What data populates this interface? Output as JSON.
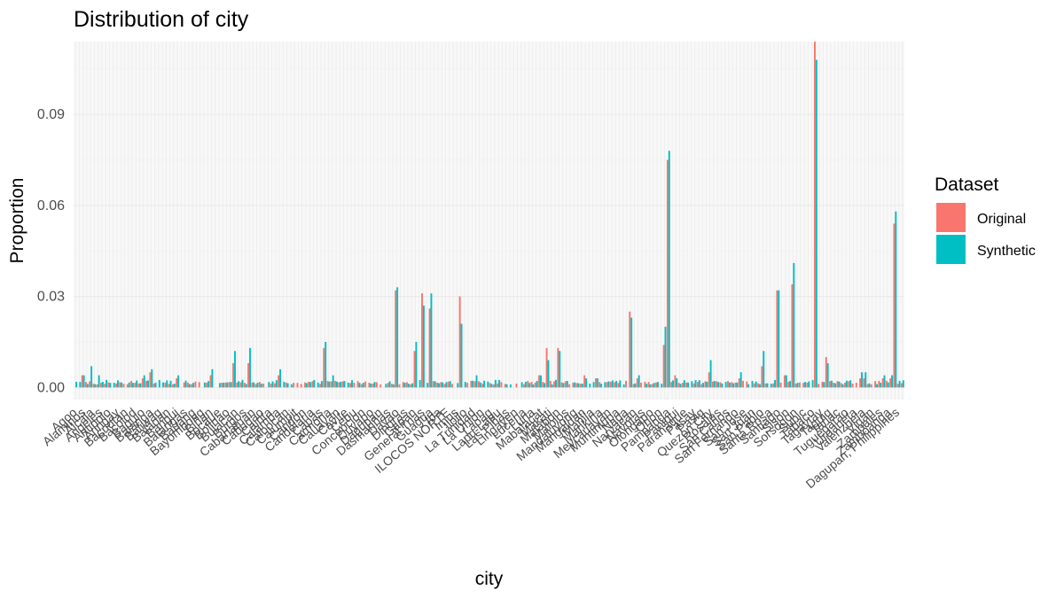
{
  "chart_data": {
    "type": "bar",
    "title": "Distribution of city",
    "xlabel": "city",
    "ylabel": "Proportion",
    "ylim": [
      -0.004,
      0.114
    ],
    "yticks": [
      0.0,
      0.03,
      0.06,
      0.09
    ],
    "ytick_labels": [
      "0.00",
      "0.03",
      "0.06",
      "0.09"
    ],
    "grid": true,
    "legend": {
      "title": "Dataset",
      "position": "right"
    },
    "series": [
      {
        "name": "Original",
        "color": "#F8766D"
      },
      {
        "name": "Synthetic",
        "color": "#00BFC4"
      }
    ],
    "category_count": 220,
    "categories": [
      "Agoo",
      "Alaminos",
      "Alcala",
      "Angeles",
      "Antipolo",
      "Aringay",
      "Bacnotan",
      "Bacolod",
      "Baguio",
      "Balanga",
      "Baliwag",
      "Balaoan",
      "Bangui",
      "Batangas",
      "Bauang",
      "Bayombong",
      "Biñan",
      "Bocaue",
      "Bolinao",
      "Bulacan",
      "Burgos",
      "Cabanatuan",
      "Cabugao",
      "Cainta",
      "Calamba",
      "Caloocan",
      "Calumpit",
      "Candon",
      "Candelaria",
      "Capas",
      "Carmona",
      "Cauayan",
      "Cavite",
      "Cebu",
      "Concepcion",
      "Cuyapo",
      "Dagupan",
      "Dasmariñas",
      "Davao",
      "Dingras",
      "Gapan",
      "General Trias",
      "Guagua",
      "Iba",
      "ILOCOS NORTE",
      "Imus",
      "Iloilo",
      "La Trinidad",
      "La Union",
      "Laoag",
      "Lapu-Lapu",
      "Las Piñas",
      "Lingayen",
      "Lucena",
      "Luna",
      "Mabalacat",
      "Makati",
      "Malabon",
      "Malolos",
      "Mandaluyong",
      "Mangaldan",
      "Manila",
      "Marikina",
      "Meycauayan",
      "Muntinlupa",
      "Naga",
      "Narvacan",
      "Navotas",
      "Olongapo",
      "Orion",
      "Pampanga",
      "Paniqui",
      "Parañaque",
      "Pasay",
      "Pasig",
      "Quezon City",
      "Rosales",
      "San Carlos",
      "San Fernando",
      "San Jose",
      "San Juan",
      "San Pablo",
      "Santa Rosa",
      "Santiago",
      "Sison",
      "Sorsogon",
      "Subic",
      "Tabaco",
      "Tagaytay",
      "Taguig",
      "Tarlac",
      "Tuguegarao",
      "Urdaneta",
      "Valenzuela",
      "Vigan",
      "Zambales",
      "Zamboanga",
      "Dagupan, Philippines"
    ],
    "peaks": [
      {
        "index": 2,
        "original": 0.004,
        "synthetic": 0.004
      },
      {
        "index": 4,
        "original": 0.002,
        "synthetic": 0.007
      },
      {
        "index": 6,
        "original": 0.001,
        "synthetic": 0.004
      },
      {
        "index": 18,
        "original": 0.003,
        "synthetic": 0.004
      },
      {
        "index": 20,
        "original": 0.005,
        "synthetic": 0.006
      },
      {
        "index": 27,
        "original": 0.003,
        "synthetic": 0.004
      },
      {
        "index": 36,
        "original": 0.004,
        "synthetic": 0.006
      },
      {
        "index": 42,
        "original": 0.008,
        "synthetic": 0.012
      },
      {
        "index": 46,
        "original": 0.008,
        "synthetic": 0.013
      },
      {
        "index": 54,
        "original": 0.004,
        "synthetic": 0.006
      },
      {
        "index": 66,
        "original": 0.013,
        "synthetic": 0.015
      },
      {
        "index": 68,
        "original": 0.002,
        "synthetic": 0.004
      },
      {
        "index": 85,
        "original": 0.032,
        "synthetic": 0.033
      },
      {
        "index": 90,
        "original": 0.012,
        "synthetic": 0.015
      },
      {
        "index": 92,
        "original": 0.031,
        "synthetic": 0.027
      },
      {
        "index": 94,
        "original": 0.026,
        "synthetic": 0.031
      },
      {
        "index": 102,
        "original": 0.03,
        "synthetic": 0.021
      },
      {
        "index": 106,
        "original": 0.002,
        "synthetic": 0.004
      },
      {
        "index": 123,
        "original": 0.004,
        "synthetic": 0.004
      },
      {
        "index": 125,
        "original": 0.013,
        "synthetic": 0.009
      },
      {
        "index": 128,
        "original": 0.013,
        "synthetic": 0.012
      },
      {
        "index": 135,
        "original": 0.004,
        "synthetic": 0.003
      },
      {
        "index": 138,
        "original": 0.003,
        "synthetic": 0.003
      },
      {
        "index": 147,
        "original": 0.025,
        "synthetic": 0.023
      },
      {
        "index": 149,
        "original": 0.003,
        "synthetic": 0.004
      },
      {
        "index": 156,
        "original": 0.014,
        "synthetic": 0.02
      },
      {
        "index": 157,
        "original": 0.075,
        "synthetic": 0.078
      },
      {
        "index": 159,
        "original": 0.004,
        "synthetic": 0.003
      },
      {
        "index": 168,
        "original": 0.005,
        "synthetic": 0.009
      },
      {
        "index": 176,
        "original": 0.003,
        "synthetic": 0.005
      },
      {
        "index": 182,
        "original": 0.007,
        "synthetic": 0.012
      },
      {
        "index": 186,
        "original": 0.032,
        "synthetic": 0.032
      },
      {
        "index": 188,
        "original": 0.004,
        "synthetic": 0.004
      },
      {
        "index": 190,
        "original": 0.034,
        "synthetic": 0.041
      },
      {
        "index": 196,
        "original": 0.114,
        "synthetic": 0.108
      },
      {
        "index": 199,
        "original": 0.01,
        "synthetic": 0.008
      },
      {
        "index": 208,
        "original": 0.003,
        "synthetic": 0.005
      },
      {
        "index": 209,
        "original": 0.003,
        "synthetic": 0.005
      },
      {
        "index": 214,
        "original": 0.003,
        "synthetic": 0.004
      },
      {
        "index": 216,
        "original": 0.003,
        "synthetic": 0.004
      },
      {
        "index": 217,
        "original": 0.054,
        "synthetic": 0.058
      }
    ],
    "baseline": {
      "original": 0.001,
      "synthetic": 0.001
    }
  }
}
